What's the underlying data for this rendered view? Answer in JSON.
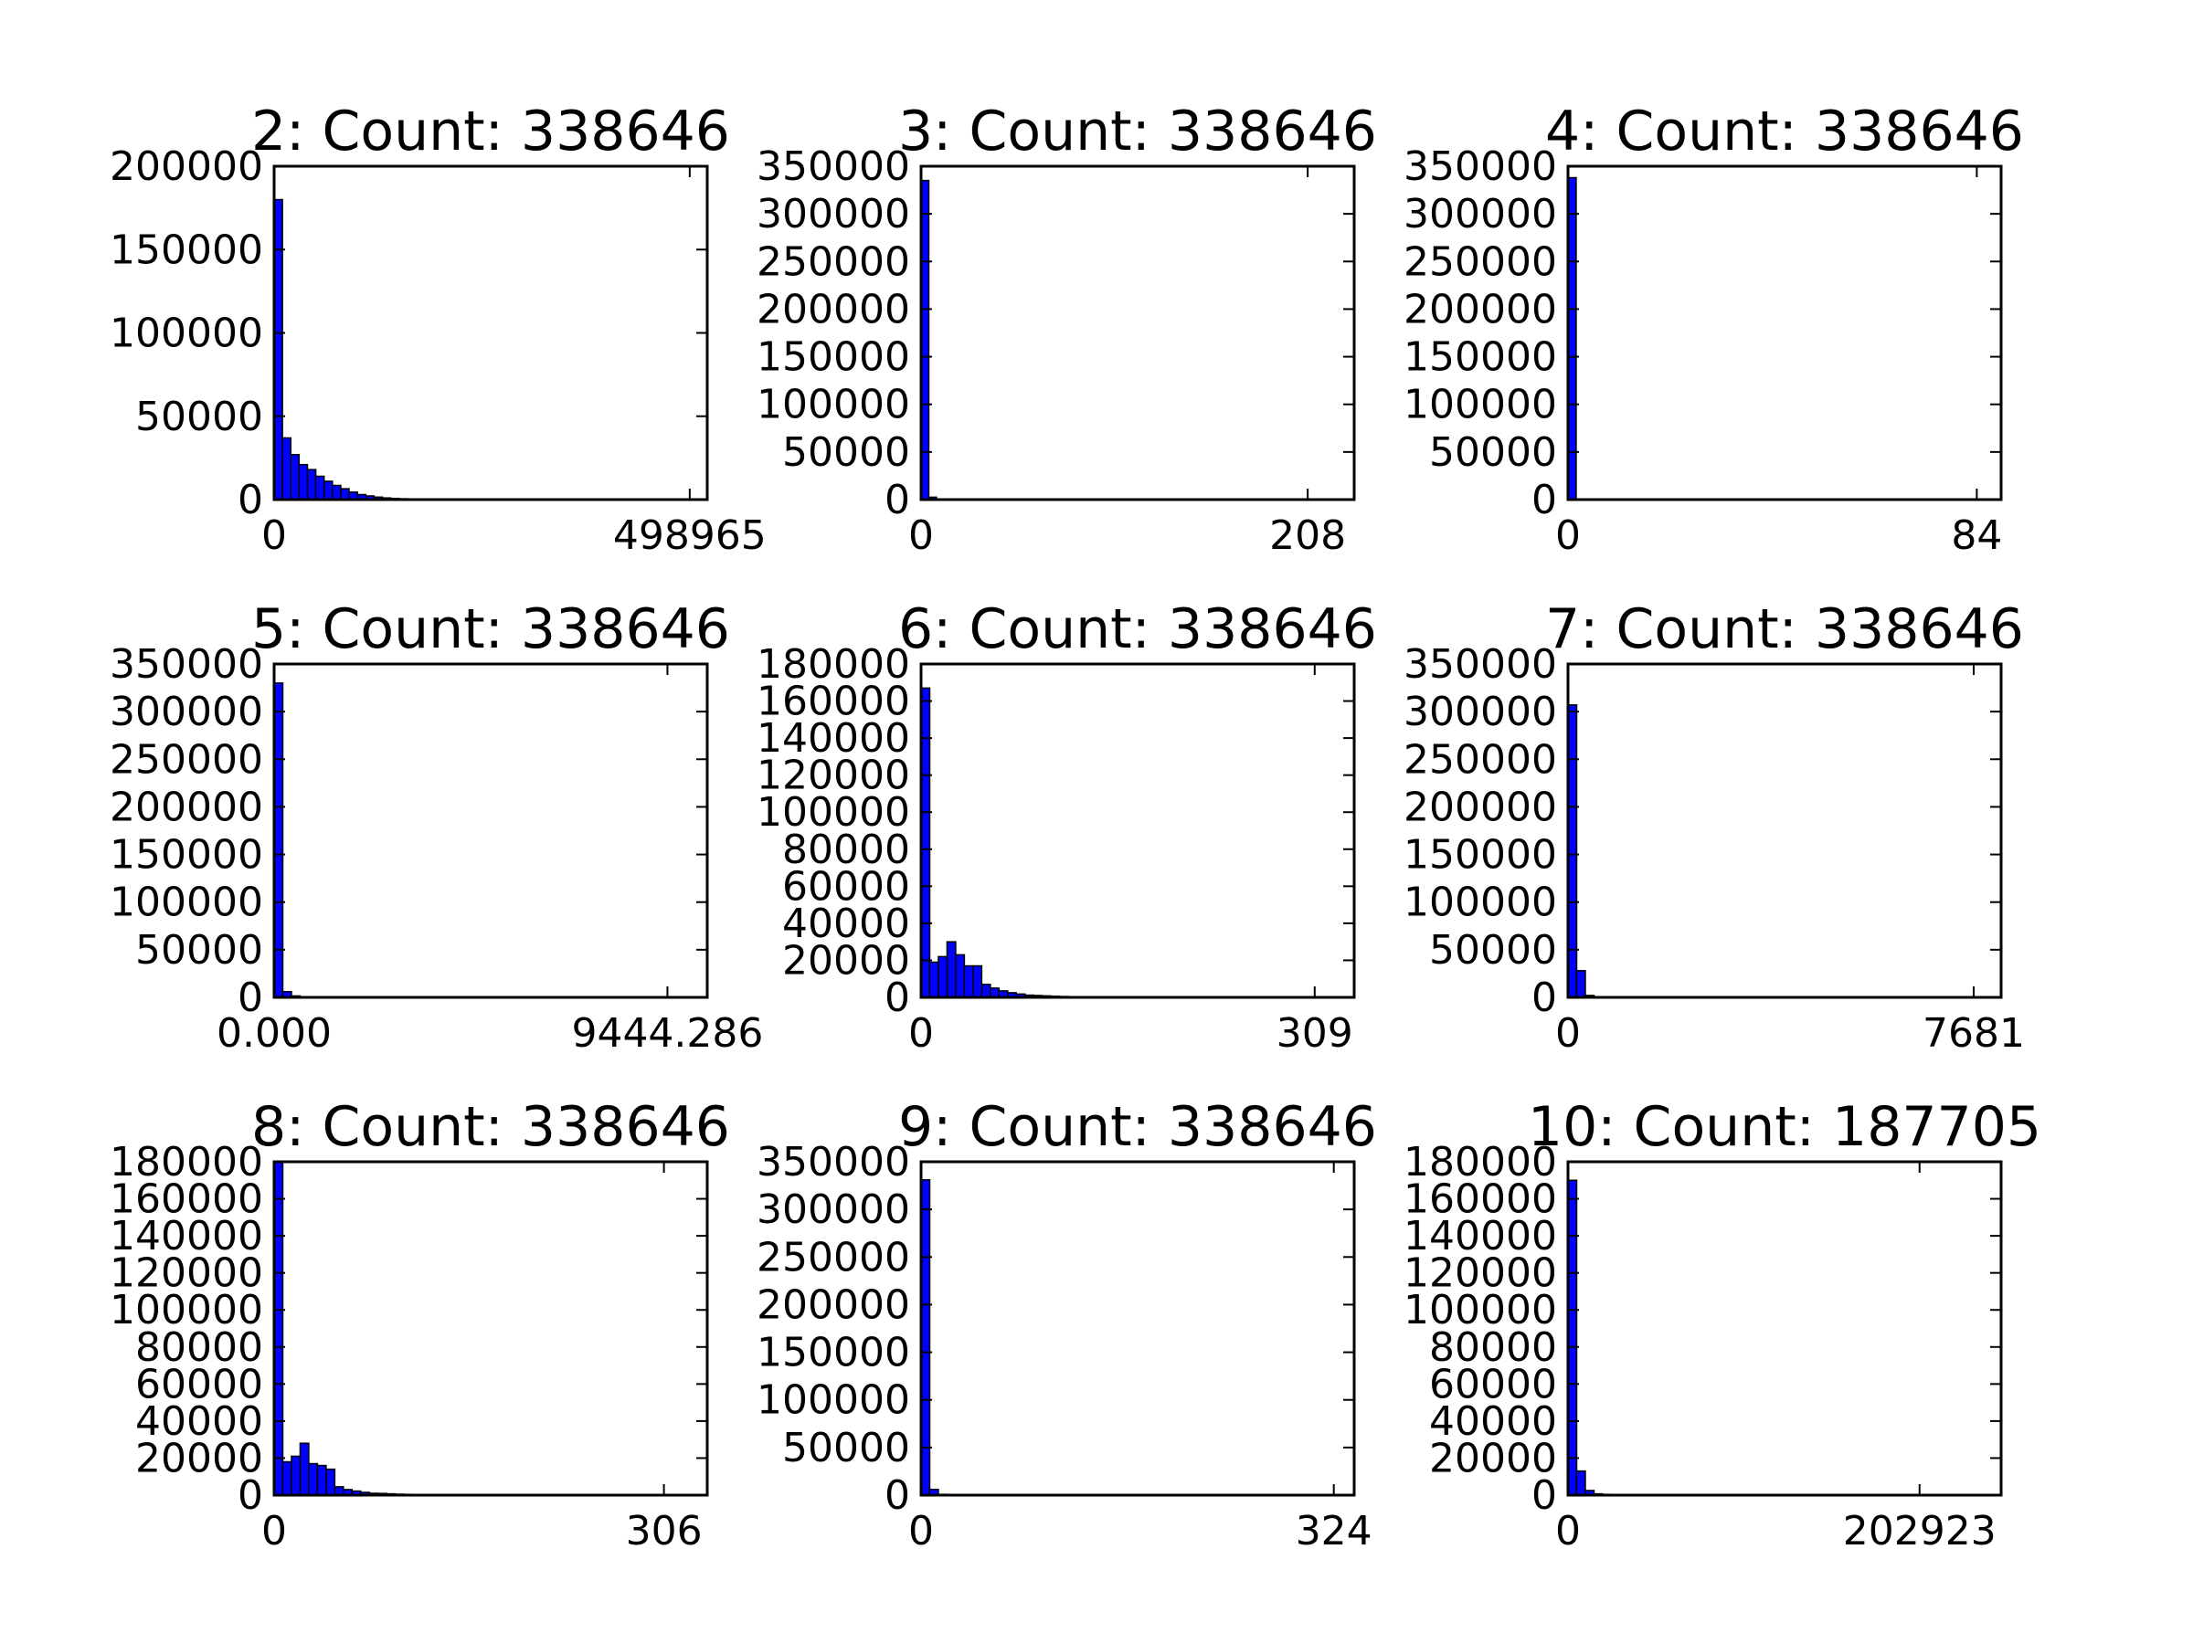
{
  "figure": {
    "background": "#ffffff",
    "bar_color": "#0000ff",
    "edge_color": "#000000"
  },
  "chart_data": [
    {
      "type": "bar",
      "title": "2: Count: 338646",
      "xlim": [
        0,
        520000
      ],
      "x_ticks": [
        {
          "value": 0,
          "label": "0"
        },
        {
          "value": 498965,
          "label": "498965"
        }
      ],
      "ylim": [
        0,
        200000
      ],
      "y_ticks": [
        0,
        50000,
        100000,
        150000,
        200000
      ],
      "bin_width": 10000,
      "values": [
        180000,
        37000,
        27000,
        21000,
        18000,
        14000,
        11000,
        8500,
        6500,
        4500,
        3000,
        2200,
        1500,
        1000,
        700,
        500,
        350,
        250,
        180,
        130,
        100,
        80,
        60,
        50,
        40,
        35,
        30,
        25,
        22,
        20,
        18,
        16,
        14,
        12,
        10,
        9,
        8,
        7,
        6,
        5,
        5,
        4,
        4,
        3,
        3,
        3,
        2,
        2,
        2,
        2
      ]
    },
    {
      "type": "bar",
      "title": "3: Count: 338646",
      "xlim": [
        0,
        233
      ],
      "x_ticks": [
        {
          "value": 0,
          "label": "0"
        },
        {
          "value": 208,
          "label": "208"
        }
      ],
      "ylim": [
        0,
        350000
      ],
      "y_ticks": [
        0,
        50000,
        100000,
        150000,
        200000,
        250000,
        300000,
        350000
      ],
      "bin_width": 4.16,
      "values": [
        335000,
        2500,
        400,
        150,
        80,
        50,
        40,
        30,
        25,
        20,
        15,
        12,
        10,
        8,
        6,
        5,
        4,
        4,
        3,
        3,
        2,
        2,
        2,
        2,
        2,
        1,
        1,
        1,
        1,
        1,
        1,
        1,
        1,
        1,
        1,
        1,
        1,
        1,
        1,
        1,
        1,
        1,
        1,
        1,
        1,
        1,
        1,
        1,
        1,
        1
      ]
    },
    {
      "type": "bar",
      "title": "4: Count: 338646",
      "xlim": [
        0,
        89
      ],
      "x_ticks": [
        {
          "value": 0,
          "label": "0"
        },
        {
          "value": 84,
          "label": "84"
        }
      ],
      "ylim": [
        0,
        350000
      ],
      "y_ticks": [
        0,
        50000,
        100000,
        150000,
        200000,
        250000,
        300000,
        350000
      ],
      "bin_width": 1.68,
      "values": [
        338000,
        400,
        100,
        50,
        30,
        20,
        15,
        12,
        10,
        8,
        6,
        5,
        4,
        3,
        3,
        2,
        2,
        2,
        1,
        1,
        1,
        1,
        1,
        1,
        1,
        1,
        1,
        1,
        1,
        1,
        1,
        1,
        1,
        1,
        1,
        1,
        1,
        1,
        1,
        1,
        1,
        1,
        1,
        1,
        1,
        1,
        1,
        1,
        1,
        1
      ]
    },
    {
      "type": "bar",
      "title": "5: Count: 338646",
      "xlim": [
        0,
        10400
      ],
      "x_ticks": [
        {
          "value": 0,
          "label": "0.000"
        },
        {
          "value": 9444.286,
          "label": "9444.286"
        }
      ],
      "ylim": [
        0,
        350000
      ],
      "y_ticks": [
        0,
        50000,
        100000,
        150000,
        200000,
        250000,
        300000,
        350000
      ],
      "bin_width": 208,
      "values": [
        330000,
        6000,
        1500,
        500,
        250,
        150,
        100,
        80,
        60,
        50,
        40,
        35,
        30,
        25,
        20,
        18,
        16,
        14,
        12,
        10,
        9,
        8,
        7,
        6,
        5,
        5,
        4,
        4,
        3,
        3,
        3,
        2,
        2,
        2,
        2,
        2,
        1,
        1,
        1,
        1,
        1,
        1,
        1,
        1,
        1,
        1,
        1,
        1,
        1,
        1
      ]
    },
    {
      "type": "bar",
      "title": "6: Count: 338646",
      "xlim": [
        0,
        340
      ],
      "x_ticks": [
        {
          "value": 0,
          "label": "0"
        },
        {
          "value": 309,
          "label": "309"
        }
      ],
      "ylim": [
        0,
        180000
      ],
      "y_ticks": [
        0,
        20000,
        40000,
        60000,
        80000,
        100000,
        120000,
        140000,
        160000,
        180000
      ],
      "bin_width": 6.8,
      "values": [
        167000,
        19000,
        22000,
        30000,
        23000,
        17000,
        17000,
        7000,
        5000,
        3500,
        2500,
        1800,
        1200,
        1000,
        800,
        600,
        450,
        350,
        280,
        220,
        180,
        150,
        120,
        100,
        80,
        70,
        60,
        50,
        45,
        40,
        35,
        30,
        28,
        25,
        22,
        20,
        18,
        16,
        14,
        12,
        10,
        9,
        8,
        7,
        6,
        5,
        4,
        3,
        2,
        2
      ]
    },
    {
      "type": "bar",
      "title": "7: Count: 338646",
      "xlim": [
        0,
        8200
      ],
      "x_ticks": [
        {
          "value": 0,
          "label": "0"
        },
        {
          "value": 7681,
          "label": "7681"
        }
      ],
      "ylim": [
        0,
        350000
      ],
      "y_ticks": [
        0,
        50000,
        100000,
        150000,
        200000,
        250000,
        300000,
        350000
      ],
      "bin_width": 164,
      "values": [
        307000,
        28000,
        2000,
        700,
        300,
        200,
        150,
        120,
        100,
        80,
        70,
        60,
        50,
        40,
        35,
        30,
        25,
        20,
        18,
        16,
        14,
        12,
        10,
        9,
        8,
        7,
        6,
        5,
        5,
        4,
        4,
        3,
        3,
        3,
        2,
        2,
        2,
        2,
        2,
        1,
        1,
        1,
        1,
        1,
        1,
        1,
        1,
        1,
        1,
        1
      ]
    },
    {
      "type": "bar",
      "title": "8: Count: 338646",
      "xlim": [
        0,
        340
      ],
      "x_ticks": [
        {
          "value": 0,
          "label": "0"
        },
        {
          "value": 306,
          "label": "306"
        }
      ],
      "ylim": [
        0,
        180000
      ],
      "y_ticks": [
        0,
        20000,
        40000,
        60000,
        80000,
        100000,
        120000,
        140000,
        160000,
        180000
      ],
      "bin_width": 6.8,
      "values": [
        180000,
        18000,
        21000,
        28000,
        17000,
        16000,
        14000,
        4500,
        3000,
        2200,
        1500,
        1000,
        900,
        700,
        500,
        400,
        300,
        250,
        200,
        150,
        120,
        100,
        90,
        80,
        70,
        60,
        50,
        45,
        40,
        35,
        30,
        28,
        25,
        22,
        20,
        18,
        16,
        14,
        12,
        10,
        9,
        8,
        7,
        6,
        5,
        4,
        3,
        3,
        2,
        2
      ]
    },
    {
      "type": "bar",
      "title": "9: Count: 338646",
      "xlim": [
        0,
        340
      ],
      "x_ticks": [
        {
          "value": 0,
          "label": "0"
        },
        {
          "value": 324,
          "label": "324"
        }
      ],
      "ylim": [
        0,
        350000
      ],
      "y_ticks": [
        0,
        50000,
        100000,
        150000,
        200000,
        250000,
        300000,
        350000
      ],
      "bin_width": 6.8,
      "values": [
        331000,
        6000,
        800,
        300,
        150,
        100,
        80,
        60,
        50,
        40,
        35,
        30,
        25,
        20,
        18,
        16,
        14,
        12,
        10,
        9,
        8,
        7,
        6,
        5,
        5,
        4,
        4,
        3,
        3,
        3,
        2,
        2,
        2,
        2,
        2,
        1,
        1,
        1,
        1,
        1,
        1,
        1,
        1,
        1,
        1,
        1,
        1,
        1,
        1,
        1
      ]
    },
    {
      "type": "bar",
      "title": "10: Count: 187705",
      "xlim": [
        0,
        250000
      ],
      "x_ticks": [
        {
          "value": 0,
          "label": "0"
        },
        {
          "value": 202923,
          "label": "202923"
        }
      ],
      "ylim": [
        0,
        180000
      ],
      "y_ticks": [
        0,
        20000,
        40000,
        60000,
        80000,
        100000,
        120000,
        140000,
        160000,
        180000
      ],
      "bin_width": 5000,
      "values": [
        170000,
        13000,
        2500,
        700,
        400,
        250,
        180,
        140,
        110,
        90,
        75,
        65,
        55,
        45,
        40,
        35,
        30,
        26,
        22,
        20,
        18,
        16,
        14,
        12,
        11,
        10,
        9,
        8,
        7,
        6,
        6,
        5,
        5,
        4,
        4,
        3,
        3,
        3,
        2,
        2,
        2,
        2,
        2,
        1,
        1,
        1,
        1,
        1,
        1,
        1
      ]
    }
  ]
}
